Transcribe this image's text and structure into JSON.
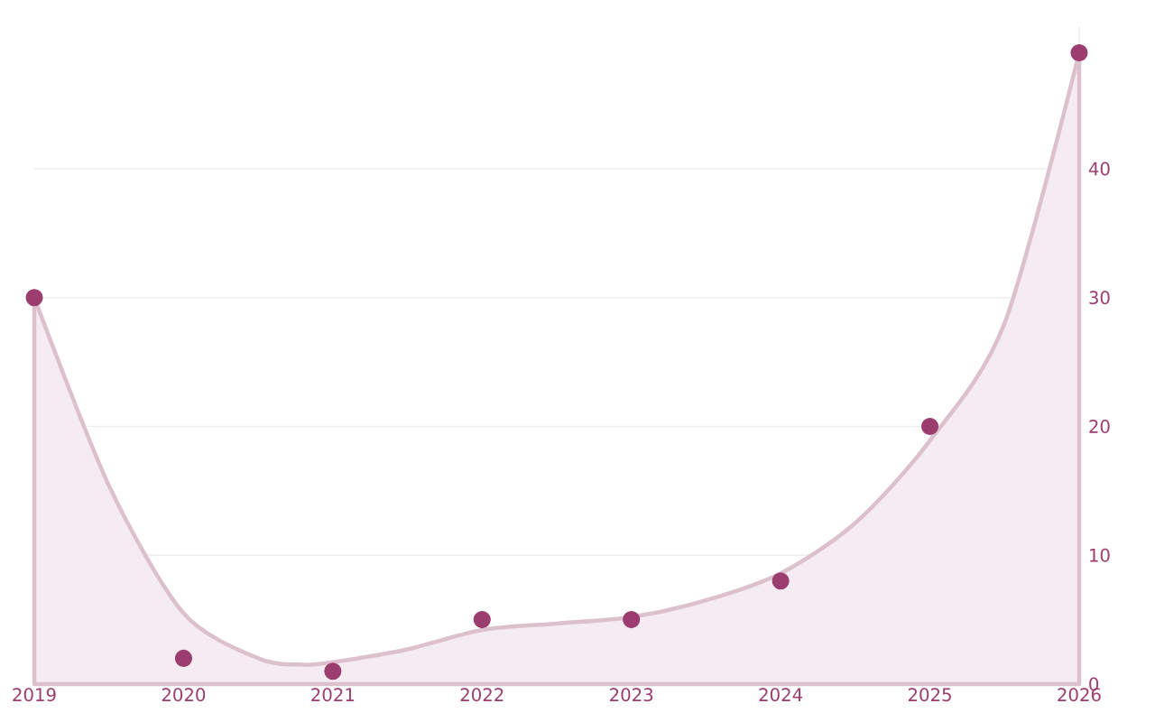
{
  "chart_data": {
    "type": "scatter",
    "xlim": [
      2019,
      2026
    ],
    "ylim": [
      0,
      51
    ],
    "xticks": [
      2019,
      2020,
      2021,
      2022,
      2023,
      2024,
      2025,
      2026
    ],
    "yticks": [
      0,
      10,
      20,
      30,
      40
    ],
    "grid": "y",
    "series": [
      {
        "type": "area",
        "marker": "none",
        "color": "#dcc0cc",
        "x": [
          2019,
          2019.5,
          2020,
          2020.5,
          2020.8,
          2021,
          2021.5,
          2022,
          2022.5,
          2023,
          2023.5,
          2024,
          2024.5,
          2025,
          2025.5,
          2026
        ],
        "values": [
          30,
          15.4,
          5.5,
          2,
          1.5,
          1.7,
          2.7,
          4.2,
          4.7,
          5.2,
          6.5,
          8.6,
          12.5,
          18.9,
          28,
          49
        ]
      },
      {
        "marker": "circle",
        "color": "#9b3d6e",
        "x": [
          2019,
          2020,
          2021,
          2022,
          2023,
          2024,
          2025,
          2026
        ],
        "values": [
          30,
          2,
          1,
          5,
          5,
          8,
          20,
          49
        ]
      }
    ]
  }
}
